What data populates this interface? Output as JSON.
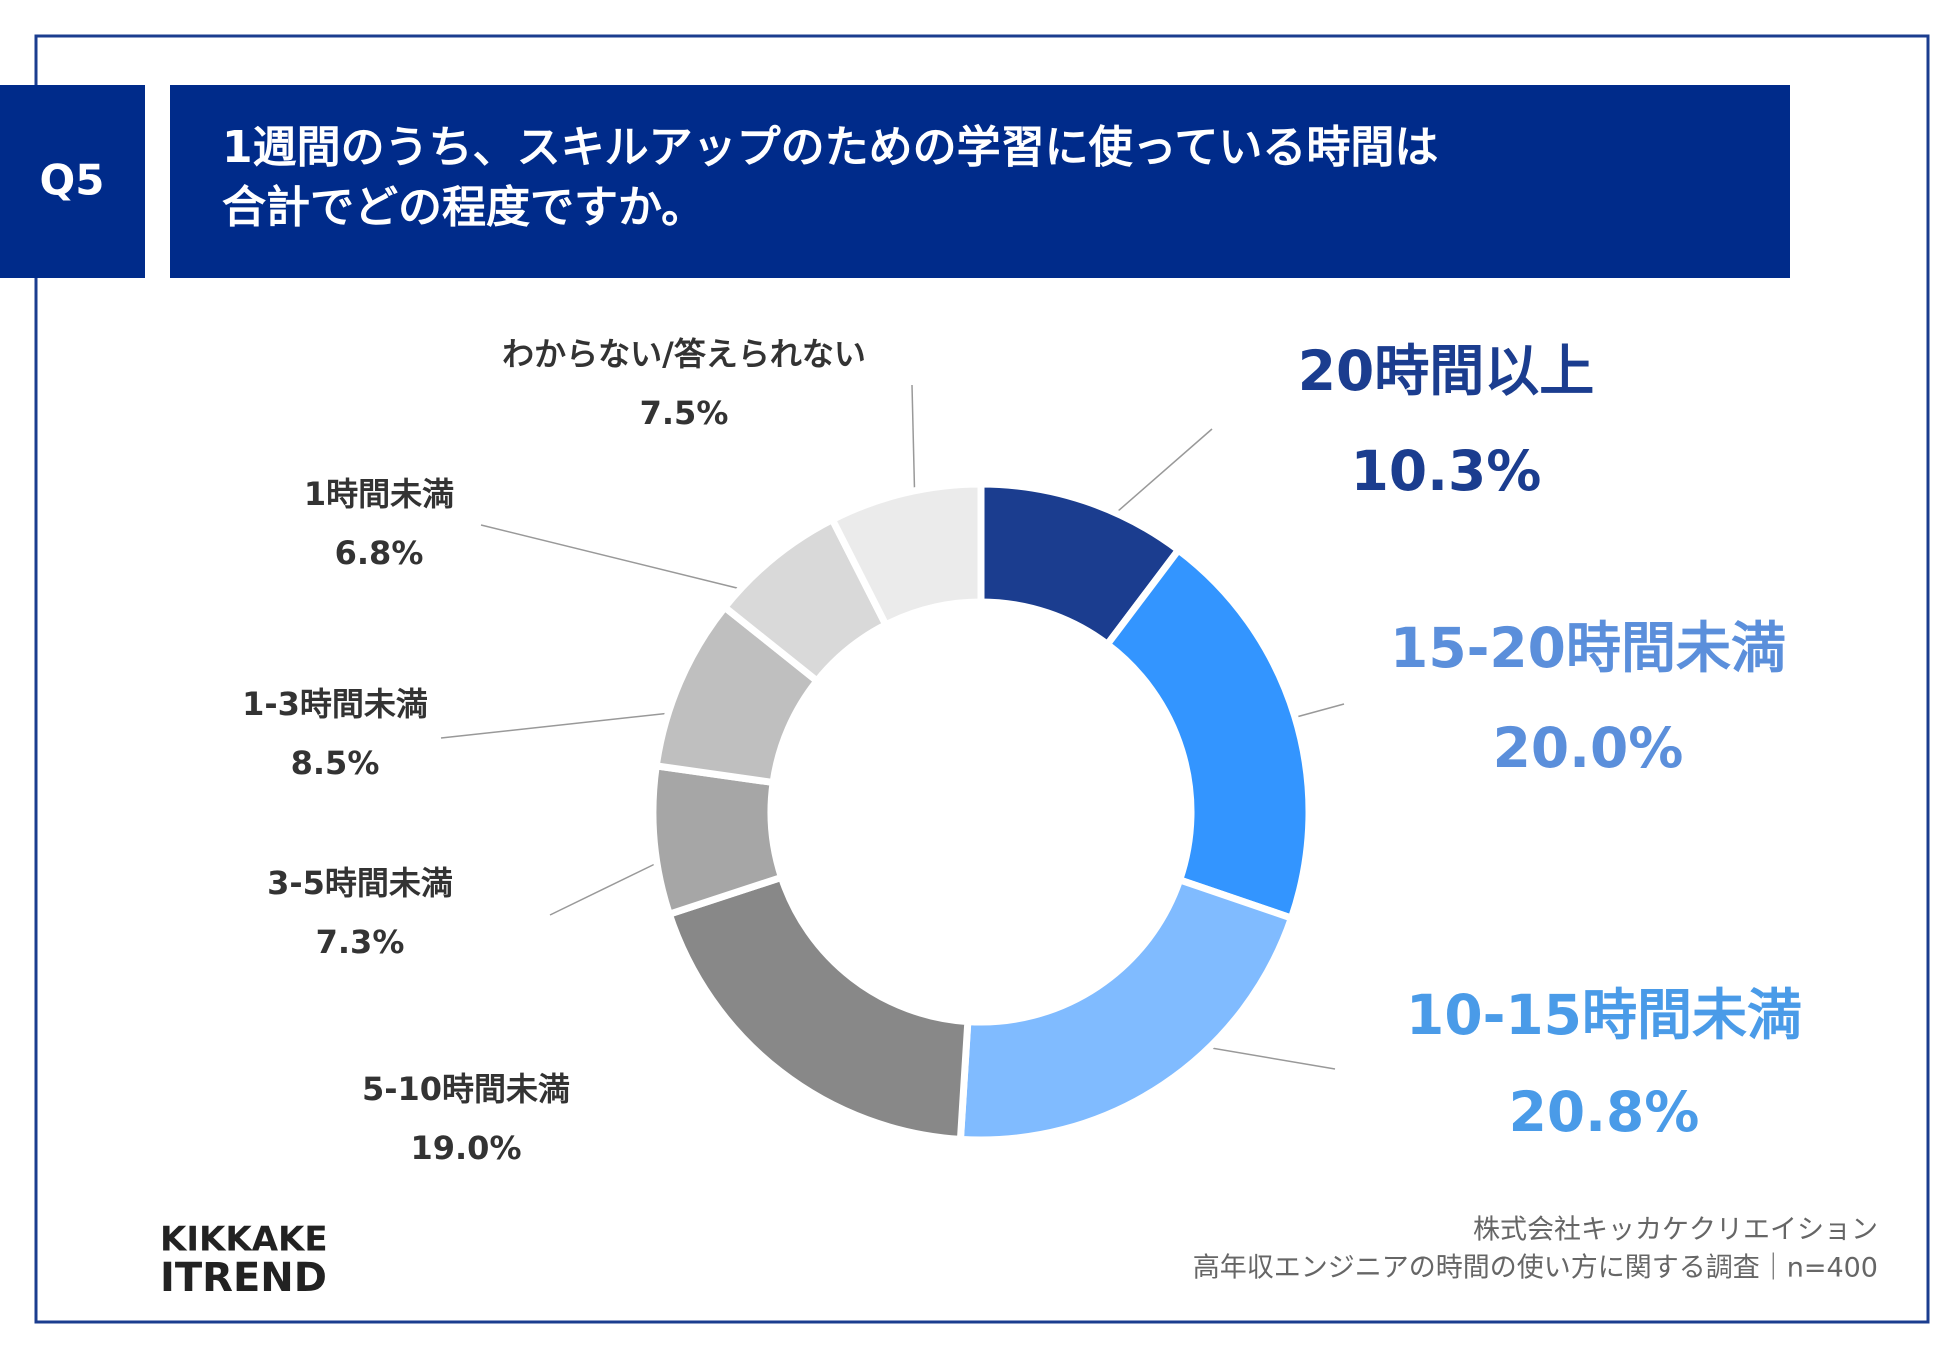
{
  "header": {
    "question": "Q5",
    "title_lines": [
      "1週間のうち、スキルアップのための学習に使っている時間は",
      "合計でどの程度ですか。"
    ]
  },
  "chart_data": {
    "type": "donut",
    "categories": [
      "20時間以上",
      "15-20時間未満",
      "10-15時間未満",
      "5-10時間未満",
      "3-5時間未満",
      "1-3時間未満",
      "1時間未満",
      "わからない/答えられない"
    ],
    "values": [
      10.3,
      20.0,
      20.8,
      19.0,
      7.3,
      8.5,
      6.8,
      7.5
    ],
    "value_labels": [
      "10.3%",
      "20.0%",
      "20.8%",
      "19.0%",
      "7.3%",
      "8.5%",
      "6.8%",
      "7.5%"
    ],
    "colors": [
      "#1b3d8f",
      "#3395ff",
      "#80bbff",
      "#888888",
      "#a6a6a6",
      "#bfbfbf",
      "#d9d9d9",
      "#ebebeb"
    ],
    "label_colors": [
      "#1b3d8f",
      "#5b8fdb",
      "#4a9be8",
      "#333333",
      "#333333",
      "#333333",
      "#333333",
      "#333333"
    ]
  },
  "footer": {
    "source_lines": [
      "株式会社キッカケクリエイション",
      "高年収エンジニアの時間の使い方に関する調査｜n=400"
    ]
  },
  "logo": {
    "lines": [
      "KIKKAKE",
      "ITREND"
    ]
  }
}
